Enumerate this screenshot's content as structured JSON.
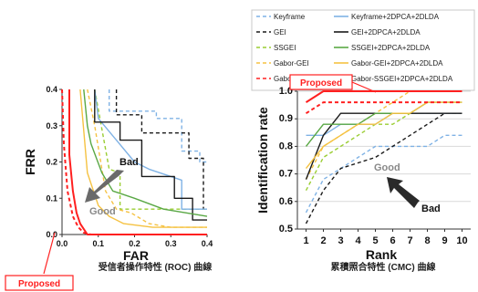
{
  "legend": {
    "entries": [
      {
        "label": "Keyframe",
        "color": "#7fb2e5",
        "dash": "dash"
      },
      {
        "label": "GEI",
        "color": "#1a1a1a",
        "dash": "dash"
      },
      {
        "label": "SSGEI",
        "color": "#9acd32",
        "dash": "dash"
      },
      {
        "label": "Gabor-GEI",
        "color": "#f5c242",
        "dash": "dash"
      },
      {
        "label": "Gabor-SSGEI",
        "color": "#ff2020",
        "dash": "dash"
      },
      {
        "label": "Keyframe+2DPCA+2DLDA",
        "color": "#7fb2e5",
        "dash": "solid"
      },
      {
        "label": "GEI+2DPCA+2DLDA",
        "color": "#1a1a1a",
        "dash": "solid"
      },
      {
        "label": "SSGEI+2DPCA+2DLDA",
        "color": "#5aa845",
        "dash": "solid"
      },
      {
        "label": "Gabor-GEI+2DPCA+2DLDA",
        "color": "#f5c242",
        "dash": "solid"
      },
      {
        "label": "Gabor-SSGEI+2DPCA+2DLDA",
        "color": "#ff2020",
        "dash": "solid"
      }
    ]
  },
  "chart_data": [
    {
      "type": "line",
      "xlabel": "FAR",
      "ylabel": "FRR",
      "caption": "受信者操作特性 (ROC) 曲線",
      "xlim": [
        0,
        0.4
      ],
      "ylim": [
        0,
        0.4
      ],
      "xticks": [
        "0.0",
        "0.1",
        "0.2",
        "0.3",
        "0.4"
      ],
      "yticks": [
        "0.0",
        "0.1",
        "0.2",
        "0.3",
        "0.4"
      ],
      "annotations": {
        "bad": "Bad",
        "good": "Good",
        "proposed": "Proposed"
      },
      "series": [
        {
          "name": "Keyframe",
          "x": [
            0.13,
            0.13,
            0.26,
            0.26,
            0.33,
            0.33,
            0.38,
            0.38,
            0.4
          ],
          "y": [
            0.4,
            0.34,
            0.34,
            0.32,
            0.32,
            0.23,
            0.23,
            0.2,
            0.2
          ]
        },
        {
          "name": "GEI",
          "x": [
            0.15,
            0.15,
            0.22,
            0.22,
            0.35,
            0.35,
            0.39,
            0.39
          ],
          "y": [
            0.4,
            0.33,
            0.33,
            0.28,
            0.28,
            0.21,
            0.21,
            0.07
          ]
        },
        {
          "name": "SSGEI",
          "x": [
            0.09,
            0.13,
            0.16,
            0.16,
            0.4
          ],
          "y": [
            0.4,
            0.18,
            0.17,
            0.07,
            0.07
          ]
        },
        {
          "name": "Gabor-GEI",
          "x": [
            0.07,
            0.09,
            0.12,
            0.15,
            0.19,
            0.24,
            0.3,
            0.4
          ],
          "y": [
            0.4,
            0.3,
            0.12,
            0.07,
            0.06,
            0.03,
            0.02,
            0.02
          ]
        },
        {
          "name": "Gabor-SSGEI",
          "x": [
            0.0,
            0.005,
            0.015,
            0.03,
            0.045,
            0.06,
            0.08,
            0.12,
            0.4
          ],
          "y": [
            0.4,
            0.25,
            0.12,
            0.05,
            0.02,
            0.005,
            0.0,
            0.0,
            0.0
          ]
        },
        {
          "name": "Keyframe+2DPCA+2DLDA",
          "x": [
            0.09,
            0.1,
            0.15,
            0.2,
            0.24,
            0.3,
            0.33,
            0.33,
            0.4
          ],
          "y": [
            0.4,
            0.32,
            0.26,
            0.2,
            0.18,
            0.16,
            0.15,
            0.07,
            0.07
          ]
        },
        {
          "name": "GEI+2DPCA+2DLDA",
          "x": [
            0.09,
            0.09,
            0.16,
            0.16,
            0.22,
            0.22,
            0.31,
            0.31,
            0.36,
            0.36,
            0.4
          ],
          "y": [
            0.4,
            0.31,
            0.31,
            0.26,
            0.26,
            0.16,
            0.16,
            0.1,
            0.1,
            0.04,
            0.04
          ]
        },
        {
          "name": "SSGEI+2DPCA+2DLDA",
          "x": [
            0.06,
            0.07,
            0.08,
            0.11,
            0.14,
            0.2,
            0.28,
            0.4
          ],
          "y": [
            0.4,
            0.3,
            0.25,
            0.17,
            0.12,
            0.1,
            0.07,
            0.05
          ]
        },
        {
          "name": "Gabor-GEI+2DPCA+2DLDA",
          "x": [
            0.05,
            0.07,
            0.1,
            0.13,
            0.17,
            0.25,
            0.4
          ],
          "y": [
            0.4,
            0.17,
            0.08,
            0.05,
            0.03,
            0.02,
            0.02
          ]
        },
        {
          "name": "Gabor-SSGEI+2DPCA+2DLDA",
          "x": [
            0.02,
            0.02,
            0.03,
            0.04,
            0.05,
            0.07,
            0.4
          ],
          "y": [
            0.4,
            0.22,
            0.12,
            0.06,
            0.03,
            0.0,
            0.0
          ]
        }
      ]
    },
    {
      "type": "line",
      "xlabel": "Rank",
      "ylabel": "Identification rate",
      "caption": "累積照合特性 (CMC) 曲線",
      "xlim": [
        0.5,
        10.5
      ],
      "ylim": [
        0.5,
        1.0
      ],
      "xticks": [
        "1",
        "2",
        "3",
        "4",
        "5",
        "6",
        "7",
        "8",
        "9",
        "10"
      ],
      "yticks": [
        "0.5",
        "0.6",
        "0.7",
        "0.8",
        "0.9",
        "1.0"
      ],
      "annotations": {
        "bad": "Bad",
        "good": "Good",
        "proposed": "Proposed"
      },
      "series": [
        {
          "name": "Keyframe",
          "x": [
            1,
            2,
            3,
            4,
            5,
            6,
            7,
            8,
            9,
            10
          ],
          "y": [
            0.56,
            0.68,
            0.72,
            0.76,
            0.8,
            0.8,
            0.8,
            0.8,
            0.84,
            0.84
          ]
        },
        {
          "name": "GEI",
          "x": [
            1,
            2,
            3,
            4,
            5,
            6,
            7,
            8,
            9,
            10
          ],
          "y": [
            0.52,
            0.64,
            0.72,
            0.74,
            0.76,
            0.8,
            0.84,
            0.88,
            0.92,
            0.92
          ]
        },
        {
          "name": "SSGEI",
          "x": [
            1,
            2,
            3,
            4,
            5,
            6,
            7,
            8,
            9,
            10
          ],
          "y": [
            0.64,
            0.76,
            0.8,
            0.84,
            0.88,
            0.88,
            0.92,
            0.92,
            0.92,
            0.92
          ]
        },
        {
          "name": "Gabor-GEI",
          "x": [
            1,
            2,
            3,
            4,
            5,
            6,
            7,
            8,
            9,
            10
          ],
          "y": [
            0.68,
            0.8,
            0.84,
            0.88,
            0.92,
            0.96,
            1.0,
            1.0,
            1.0,
            1.0
          ]
        },
        {
          "name": "Gabor-SSGEI",
          "x": [
            1,
            2,
            3,
            4,
            5,
            6,
            7,
            8,
            9,
            10
          ],
          "y": [
            0.92,
            0.96,
            0.96,
            0.96,
            0.96,
            0.96,
            0.96,
            0.96,
            0.96,
            0.96
          ]
        },
        {
          "name": "Keyframe+2DPCA+2DLDA",
          "x": [
            1,
            2,
            3,
            4,
            5,
            6,
            7,
            8,
            9,
            10
          ],
          "y": [
            0.84,
            0.84,
            0.88,
            0.88,
            0.88,
            0.92,
            0.92,
            0.92,
            0.92,
            0.92
          ]
        },
        {
          "name": "GEI+2DPCA+2DLDA",
          "x": [
            1,
            2,
            3,
            4,
            5,
            6,
            7,
            8,
            9,
            10
          ],
          "y": [
            0.68,
            0.84,
            0.92,
            0.92,
            0.92,
            0.92,
            0.92,
            0.92,
            0.92,
            0.92
          ]
        },
        {
          "name": "SSGEI+2DPCA+2DLDA",
          "x": [
            1,
            2,
            3,
            4,
            5,
            6,
            7,
            8,
            9,
            10
          ],
          "y": [
            0.8,
            0.88,
            0.88,
            0.88,
            0.92,
            0.92,
            0.92,
            0.96,
            0.96,
            0.96
          ]
        },
        {
          "name": "Gabor-GEI+2DPCA+2DLDA",
          "x": [
            1,
            2,
            3,
            4,
            5,
            6,
            7,
            8,
            9,
            10
          ],
          "y": [
            0.72,
            0.8,
            0.84,
            0.88,
            0.88,
            0.92,
            0.92,
            0.96,
            0.96,
            0.96
          ]
        },
        {
          "name": "Gabor-SSGEI+2DPCA+2DLDA",
          "x": [
            1,
            2,
            3,
            4,
            5,
            6,
            7,
            8,
            9,
            10
          ],
          "y": [
            0.96,
            1.0,
            1.0,
            1.0,
            1.0,
            1.0,
            1.0,
            1.0,
            1.0,
            1.0
          ]
        }
      ]
    }
  ]
}
